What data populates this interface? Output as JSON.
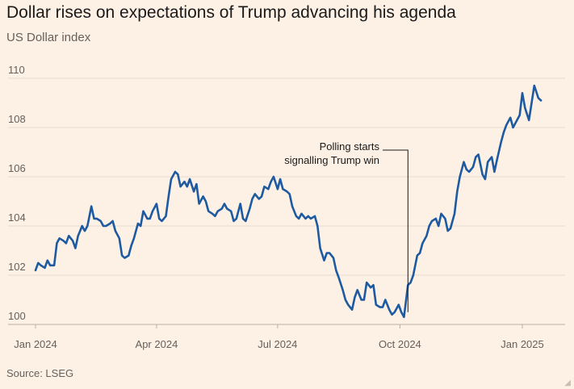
{
  "header": {
    "title": "Dollar rises on expectations of Trump advancing his agenda",
    "subtitle": "US Dollar index"
  },
  "footer": {
    "source": "Source: LSEG"
  },
  "colors": {
    "background": "#fdf1e6",
    "line": "#1e5aa0",
    "grid": "#e6dbcf",
    "baseline": "#b8aea3",
    "text": "#1a1a1a",
    "muted": "#66605a"
  },
  "chart_data": {
    "type": "line",
    "title": "Dollar rises on expectations of Trump advancing his agenda",
    "subtitle": "US Dollar index",
    "xlabel": "",
    "ylabel": "",
    "ylim": [
      100,
      110.5
    ],
    "xlim": [
      "2024-01-01",
      "2025-01-15"
    ],
    "y_ticks": [
      100,
      102,
      104,
      106,
      108,
      110
    ],
    "y_tick_labels": [
      "100",
      "102",
      "104",
      "106",
      "108",
      "110"
    ],
    "x_ticks": [
      "2024-01-01",
      "2024-04-01",
      "2024-07-01",
      "2024-10-01",
      "2025-01-01"
    ],
    "x_tick_labels": [
      "Jan 2024",
      "Apr 2024",
      "Jul 2024",
      "Oct 2024",
      "Jan 2025"
    ],
    "grid": "horizontal",
    "legend": "none",
    "series": [
      {
        "x": [
          "2024-01-01",
          "2024-01-03",
          "2024-01-05",
          "2024-01-08",
          "2024-01-10",
          "2024-01-12",
          "2024-01-15",
          "2024-01-17",
          "2024-01-19",
          "2024-01-22",
          "2024-01-24",
          "2024-01-26",
          "2024-01-29",
          "2024-01-31",
          "2024-02-02",
          "2024-02-05",
          "2024-02-07",
          "2024-02-09",
          "2024-02-12",
          "2024-02-14",
          "2024-02-16",
          "2024-02-19",
          "2024-02-21",
          "2024-02-23",
          "2024-02-26",
          "2024-02-28",
          "2024-03-01",
          "2024-03-04",
          "2024-03-06",
          "2024-03-08",
          "2024-03-11",
          "2024-03-13",
          "2024-03-15",
          "2024-03-18",
          "2024-03-20",
          "2024-03-22",
          "2024-03-25",
          "2024-03-27",
          "2024-03-29",
          "2024-04-01",
          "2024-04-03",
          "2024-04-05",
          "2024-04-08",
          "2024-04-10",
          "2024-04-12",
          "2024-04-15",
          "2024-04-17",
          "2024-04-19",
          "2024-04-22",
          "2024-04-24",
          "2024-04-26",
          "2024-04-29",
          "2024-05-01",
          "2024-05-03",
          "2024-05-06",
          "2024-05-08",
          "2024-05-10",
          "2024-05-13",
          "2024-05-15",
          "2024-05-17",
          "2024-05-20",
          "2024-05-22",
          "2024-05-24",
          "2024-05-27",
          "2024-05-29",
          "2024-05-31",
          "2024-06-03",
          "2024-06-05",
          "2024-06-07",
          "2024-06-10",
          "2024-06-12",
          "2024-06-14",
          "2024-06-17",
          "2024-06-19",
          "2024-06-21",
          "2024-06-24",
          "2024-06-26",
          "2024-06-28",
          "2024-07-01",
          "2024-07-03",
          "2024-07-05",
          "2024-07-08",
          "2024-07-10",
          "2024-07-12",
          "2024-07-15",
          "2024-07-17",
          "2024-07-19",
          "2024-07-22",
          "2024-07-24",
          "2024-07-26",
          "2024-07-29",
          "2024-07-31",
          "2024-08-02",
          "2024-08-05",
          "2024-08-07",
          "2024-08-09",
          "2024-08-12",
          "2024-08-14",
          "2024-08-16",
          "2024-08-19",
          "2024-08-21",
          "2024-08-23",
          "2024-08-26",
          "2024-08-28",
          "2024-08-30",
          "2024-09-02",
          "2024-09-04",
          "2024-09-06",
          "2024-09-09",
          "2024-09-11",
          "2024-09-13",
          "2024-09-16",
          "2024-09-18",
          "2024-09-20",
          "2024-09-23",
          "2024-09-25",
          "2024-09-27",
          "2024-09-30",
          "2024-10-02",
          "2024-10-04",
          "2024-10-07",
          "2024-10-09",
          "2024-10-11",
          "2024-10-14",
          "2024-10-16",
          "2024-10-18",
          "2024-10-21",
          "2024-10-23",
          "2024-10-25",
          "2024-10-28",
          "2024-10-30",
          "2024-11-01",
          "2024-11-04",
          "2024-11-06",
          "2024-11-08",
          "2024-11-11",
          "2024-11-13",
          "2024-11-15",
          "2024-11-18",
          "2024-11-20",
          "2024-11-22",
          "2024-11-25",
          "2024-11-27",
          "2024-11-29",
          "2024-12-02",
          "2024-12-04",
          "2024-12-06",
          "2024-12-09",
          "2024-12-11",
          "2024-12-13",
          "2024-12-16",
          "2024-12-18",
          "2024-12-20",
          "2024-12-23",
          "2024-12-25",
          "2024-12-27",
          "2024-12-30",
          "2025-01-01",
          "2025-01-03",
          "2025-01-06",
          "2025-01-08",
          "2025-01-10",
          "2025-01-13",
          "2025-01-15"
        ],
        "values": [
          102.2,
          102.5,
          102.4,
          102.3,
          102.6,
          102.4,
          102.4,
          103.3,
          103.5,
          103.4,
          103.3,
          103.6,
          103.4,
          103.1,
          103.6,
          104.0,
          103.8,
          104.0,
          104.8,
          104.3,
          104.3,
          104.2,
          104.0,
          104.0,
          104.1,
          104.2,
          103.8,
          103.5,
          102.8,
          102.7,
          102.8,
          103.2,
          103.5,
          104.1,
          104.0,
          104.6,
          104.3,
          104.3,
          104.6,
          104.9,
          104.3,
          104.2,
          104.4,
          105.2,
          105.9,
          106.2,
          106.1,
          105.6,
          105.8,
          105.6,
          105.9,
          105.4,
          105.7,
          104.9,
          105.2,
          105.0,
          104.6,
          104.5,
          104.4,
          104.6,
          104.7,
          104.9,
          104.7,
          104.6,
          104.2,
          104.3,
          104.9,
          104.3,
          104.2,
          104.7,
          105.1,
          105.3,
          105.1,
          105.2,
          105.6,
          105.5,
          105.8,
          106.0,
          105.5,
          105.9,
          105.5,
          105.4,
          105.3,
          104.8,
          104.4,
          104.3,
          104.5,
          104.3,
          104.4,
          104.3,
          104.4,
          104.0,
          103.1,
          102.6,
          102.9,
          102.9,
          102.7,
          102.2,
          101.9,
          101.4,
          101.0,
          100.8,
          100.6,
          101.1,
          101.4,
          101.0,
          101.0,
          101.7,
          101.5,
          101.6,
          100.8,
          100.7,
          100.7,
          101.0,
          100.6,
          100.4,
          100.5,
          100.8,
          100.5,
          100.3,
          101.6,
          101.7,
          102.0,
          102.8,
          102.9,
          103.3,
          103.6,
          104.0,
          104.2,
          104.3,
          104.0,
          104.5,
          104.3,
          103.8,
          103.9,
          104.5,
          105.4,
          106.0,
          106.6,
          106.3,
          106.2,
          106.4,
          106.8,
          106.9,
          106.1,
          105.9,
          106.6,
          106.8,
          106.2,
          106.7,
          107.4,
          107.8,
          108.1,
          108.4,
          108.0,
          108.2,
          108.5,
          109.4,
          108.8,
          108.3,
          109.0,
          109.7,
          109.2,
          109.1
        ]
      }
    ],
    "annotations": [
      {
        "lines": [
          "Polling starts",
          "signalling Trump win"
        ],
        "x": "2024-10-07",
        "y": 100.3
      }
    ]
  }
}
